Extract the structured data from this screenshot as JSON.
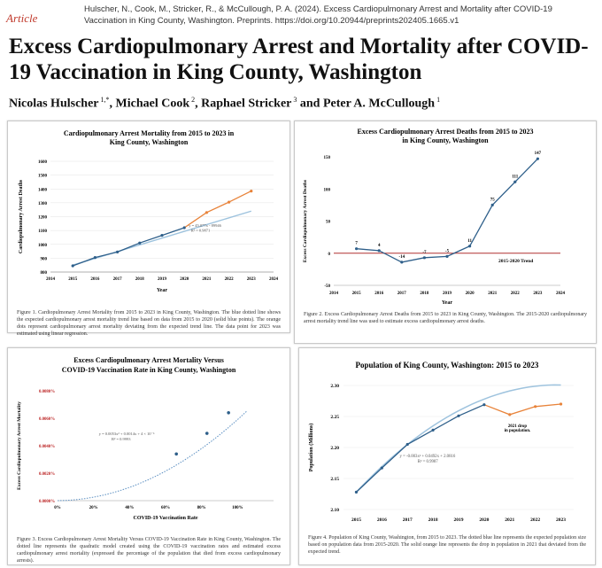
{
  "header": {
    "article_label": "Article",
    "citation_line1": "Hulscher, N., Cook, M., Stricker, R., & McCullough, P. A. (2024). Excess Cardiopulmonary Arrest and Mortality after COVID-19",
    "citation_line2": "Vaccination in King County, Washington. Preprints. https://doi.org/10.20944/preprints202405.1665.v1",
    "title": "Excess Cardiopulmonary Arrest and Mortality after COVID-19 Vaccination in King County, Washington",
    "authors": [
      {
        "name": "Nicolas Hulscher",
        "aff": "1,*"
      },
      {
        "name": "Michael Cook",
        "aff": "2"
      },
      {
        "name": "Raphael Stricker",
        "aff": "3"
      },
      {
        "name": "Peter A. McCullough",
        "aff": "1"
      }
    ],
    "authors_sep": ", ",
    "authors_and": " and "
  },
  "figures": {
    "fig1": {
      "caption": "Figure 1. Cardiopulmonary Arrest Mortality from 2015 to 2023 in King County, Washington. The blue dotted line shows the expected cardiopulmonary arrest mortality trend line based on data from 2015 to 2020 (solid blue points). The orange dots represent cardiopulmonary arrest mortality deviating from the expected trend line. The data point for 2023 was estimated using linear regression.",
      "equation": "y = 45.077x - 89946",
      "r2": "R² = 0.9871"
    },
    "fig2": {
      "caption": "Figure 2. Excess Cardiopulmonary Arrest Deaths from 2015 to 2023 in King County, Washington. The 2015-2020 cardiopulmonary arrest mortality trend line was used to estimate excess cardiopulmonary arrest deaths.",
      "trend_label": "2015-2020 Trend"
    },
    "fig3": {
      "caption": "Figure 3. Excess Cardiopulmonary Arrest Mortality Versus COVID-19 Vaccination Rate in King County, Washington. The dotted line represents the quadratic model created using the COVID-19 vaccination rates and estimated excess cardiopulmonary arrest mortality (expressed the percentage of the population that died from excess cardiopulmonary arrests).",
      "equation": "y = 0.0053x² + 0.0014x + 4 × 10⁻⁶",
      "r2": "R² = 0.9993"
    },
    "fig4": {
      "caption": "Figure 4. Population of King County, Washington, from 2015 to 2023. The dotted blue line represents the expected population size based on population data from 2015-2020. The solid orange line represents the drop in population in 2021 that deviated from the expected trend.",
      "equation": "y = -0.003x² + 0.0492x + 2.0816",
      "r2": "R² = 0.9987",
      "annotation_line1": "2021 drop",
      "annotation_line2": "in population."
    }
  },
  "chart_data": [
    {
      "type": "line",
      "title": "Cardiopulmonary Arrest Mortality from 2015 to 2023 in King County, Washington",
      "xlabel": "Year",
      "ylabel": "Cardiopulmonary Arrest Deaths",
      "xlim": [
        2014,
        2024
      ],
      "ylim": [
        800,
        1600
      ],
      "xticks": [
        2014,
        2015,
        2016,
        2017,
        2018,
        2019,
        2020,
        2021,
        2022,
        2023,
        2024
      ],
      "yticks": [
        800,
        900,
        1000,
        1100,
        1200,
        1300,
        1400,
        1500,
        1600
      ],
      "colors": {
        "observed": "#2e5f8a",
        "excess": "#e8833a",
        "trend": "#9ec3de"
      },
      "series": [
        {
          "x": [
            2015,
            2016,
            2017,
            2018,
            2019,
            2020
          ],
          "values": [
            845,
            905,
            945,
            1010,
            1065,
            1120
          ]
        },
        {
          "x": [
            2020,
            2021,
            2022,
            2023
          ],
          "values": [
            1120,
            1230,
            1305,
            1385
          ]
        },
        {
          "x": [
            2015,
            2023
          ],
          "values": [
            850,
            1240
          ]
        }
      ]
    },
    {
      "type": "line",
      "title": "Excess Cardiopulmonary Arrest Deaths from 2015 to 2023 in King County, Washington",
      "xlabel": "Year",
      "ylabel": "Excess Cardiopulmonary Arrest Deaths",
      "xlim": [
        2014,
        2024
      ],
      "ylim": [
        -50,
        150
      ],
      "xticks": [
        2014,
        2015,
        2016,
        2017,
        2018,
        2019,
        2020,
        2021,
        2022,
        2023,
        2024
      ],
      "yticks": [
        -50,
        0,
        50,
        100,
        150
      ],
      "colors": {
        "line": "#2e5f8a",
        "trend": "#b03030"
      },
      "x": [
        2015,
        2016,
        2017,
        2018,
        2019,
        2020,
        2021,
        2022,
        2023
      ],
      "values": [
        7,
        4,
        -14,
        -7,
        -5,
        11,
        75,
        111,
        147
      ],
      "labels": [
        "7",
        "4",
        "-14",
        "-7",
        "-5",
        "11",
        "75",
        "111",
        "147"
      ]
    },
    {
      "type": "scatter",
      "title": "Excess Cardiopulmonary Arrest Mortality Versus COVID-19 Vaccination Rate in King County, Washington",
      "xlabel": "COVID-19 Vaccination Rate",
      "ylabel": "Excess Cardiopulmonary Arrest Mortality",
      "xlim": [
        0,
        1.2
      ],
      "ylim": [
        0,
        0.0008
      ],
      "xticks": [
        "0%",
        "20%",
        "40%",
        "60%",
        "80%",
        "100%"
      ],
      "yticks": [
        "0.0000%",
        "0.0020%",
        "0.0040%",
        "0.0060%",
        "0.0080%"
      ],
      "colors": {
        "points": "#2e5f8a",
        "fit": "#5b8fc2"
      },
      "x": [
        0.66,
        0.83,
        0.95
      ],
      "values": [
        0.00034,
        0.00049,
        0.00064
      ]
    },
    {
      "type": "line",
      "title": "Population of King County, Washington: 2015 to 2023",
      "xlabel": "",
      "ylabel": "Population (Millions)",
      "xlim": [
        2014.5,
        2023.5
      ],
      "ylim": [
        2.1,
        2.3
      ],
      "xticks": [
        2015,
        2016,
        2017,
        2018,
        2019,
        2020,
        2021,
        2022,
        2023
      ],
      "yticks": [
        2.1,
        2.15,
        2.2,
        2.25,
        2.3
      ],
      "ytick_labels": [
        "2.10",
        "2.15",
        "2.20",
        "2.25",
        "2.30"
      ],
      "colors": {
        "observed": "#2e5f8a",
        "drop": "#e8833a",
        "trend": "#9ec3de"
      },
      "series": [
        {
          "x": [
            2015,
            2016,
            2017,
            2018,
            2019,
            2020
          ],
          "values": [
            2.128,
            2.167,
            2.205,
            2.228,
            2.251,
            2.269
          ]
        },
        {
          "x": [
            2020,
            2021,
            2022,
            2023
          ],
          "values": [
            2.269,
            2.253,
            2.266,
            2.27
          ]
        }
      ]
    }
  ]
}
